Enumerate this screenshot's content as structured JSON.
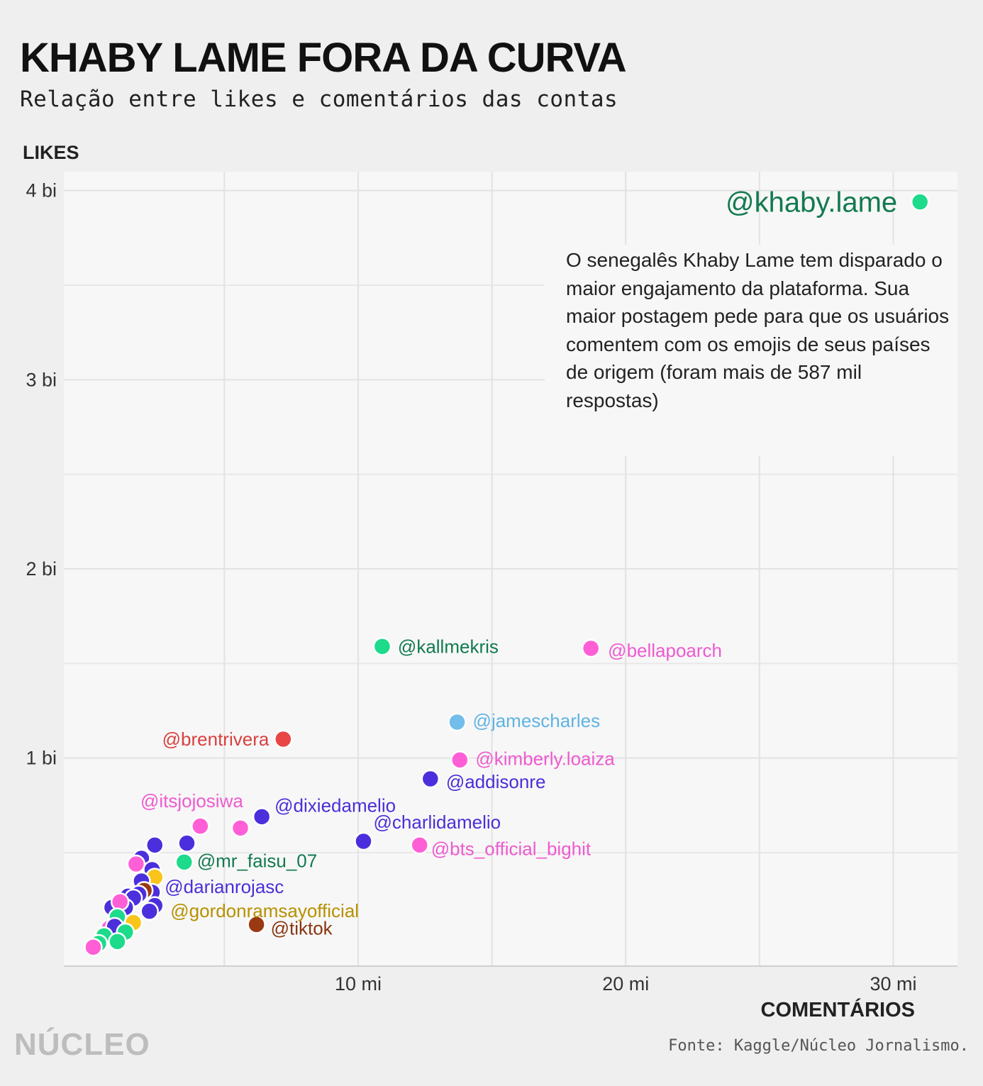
{
  "title": "KHABY LAME FORA DA CURVA",
  "subtitle": "Relação entre likes e comentários das contas",
  "footer": {
    "logo": "NÚCLEO",
    "source": "Fonte: Kaggle/Núcleo Jornalismo."
  },
  "annotation": "O senegalês Khaby Lame tem disparado o maior engajamento da plataforma. Sua maior postagem pede para que os usuários comentem com os emojis de seus países de origem (foram mais de 587 mil respostas)",
  "chart_data": {
    "type": "scatter",
    "title": "KHABY LAME FORA DA CURVA",
    "subtitle": "Relação entre likes e comentários das contas",
    "xlabel": "COMENTÁRIOS",
    "ylabel": "LIKES",
    "x_unit": "mi",
    "y_unit": "bi",
    "xlim": [
      -1.0,
      32.4
    ],
    "ylim": [
      -0.1,
      4.1
    ],
    "x_ticks": [
      {
        "value": 10,
        "label": "10 mi"
      },
      {
        "value": 20,
        "label": "20 mi"
      },
      {
        "value": 30,
        "label": "30 mi"
      }
    ],
    "y_ticks": [
      {
        "value": 1,
        "label": "1 bi"
      },
      {
        "value": 2,
        "label": "2 bi"
      },
      {
        "value": 3,
        "label": "3 bi"
      },
      {
        "value": 4,
        "label": "4 bi"
      }
    ],
    "grid": true,
    "colors": {
      "green": "#1ddb8b",
      "green_text": "#127a4f",
      "pink": "#ff5fd6",
      "pink_text": "#ef5ad0",
      "blue": "#4c2fdc",
      "blue_text": "#4a2fd8",
      "lightblue": "#72bdea",
      "lightblue_text": "#5fb3e4",
      "red": "#e94646",
      "red_text": "#d9403f",
      "yellow": "#f9c51a",
      "yellow_text": "#b89000",
      "brown": "#9a3a12",
      "brown_text": "#8a3510"
    },
    "points": [
      {
        "label": "@khaby.lame",
        "x": 31.0,
        "y": 3.94,
        "color": "green"
      },
      {
        "label": "@kallmekris",
        "x": 10.9,
        "y": 1.59,
        "color": "green"
      },
      {
        "label": "@bellapoarch",
        "x": 18.7,
        "y": 1.58,
        "color": "pink"
      },
      {
        "label": "@jamescharles",
        "x": 13.7,
        "y": 1.19,
        "color": "lightblue"
      },
      {
        "label": "@brentrivera",
        "x": 7.2,
        "y": 1.1,
        "color": "red"
      },
      {
        "label": "@kimberly.loaiza",
        "x": 13.8,
        "y": 0.99,
        "color": "pink"
      },
      {
        "label": "@addisonre",
        "x": 12.7,
        "y": 0.89,
        "color": "blue"
      },
      {
        "label": "@dixiedamelio",
        "x": 6.4,
        "y": 0.69,
        "color": "blue"
      },
      {
        "label": "@itsjojosiwa",
        "x": 4.1,
        "y": 0.64,
        "color": "pink"
      },
      {
        "label": "",
        "x": 5.6,
        "y": 0.63,
        "color": "pink"
      },
      {
        "label": "@charlidamelio",
        "x": 10.2,
        "y": 0.56,
        "color": "blue"
      },
      {
        "label": "@bts_official_bighit",
        "x": 12.3,
        "y": 0.54,
        "color": "pink"
      },
      {
        "label": "",
        "x": 2.4,
        "y": 0.54,
        "color": "blue"
      },
      {
        "label": "",
        "x": 3.6,
        "y": 0.55,
        "color": "blue"
      },
      {
        "label": "@mr_faisu_07",
        "x": 3.5,
        "y": 0.45,
        "color": "green"
      },
      {
        "label": "",
        "x": 1.9,
        "y": 0.47,
        "color": "blue"
      },
      {
        "label": "",
        "x": 1.7,
        "y": 0.44,
        "color": "pink"
      },
      {
        "label": "",
        "x": 2.3,
        "y": 0.41,
        "color": "blue"
      },
      {
        "label": "@darianrojasc",
        "x": 2.4,
        "y": 0.37,
        "color": "yellow"
      },
      {
        "label": "",
        "x": 1.9,
        "y": 0.35,
        "color": "blue"
      },
      {
        "label": "",
        "x": 2.3,
        "y": 0.29,
        "color": "blue"
      },
      {
        "label": "",
        "x": 1.4,
        "y": 0.27,
        "color": "blue"
      },
      {
        "label": "",
        "x": 2.0,
        "y": 0.3,
        "color": "brown"
      },
      {
        "label": "",
        "x": 1.8,
        "y": 0.28,
        "color": "blue"
      },
      {
        "label": "",
        "x": 1.6,
        "y": 0.26,
        "color": "blue"
      },
      {
        "label": "@gordonramsayofficial",
        "x": 2.4,
        "y": 0.22,
        "color": "blue"
      },
      {
        "label": "",
        "x": 2.2,
        "y": 0.19,
        "color": "blue"
      },
      {
        "label": "",
        "x": 0.8,
        "y": 0.21,
        "color": "blue"
      },
      {
        "label": "",
        "x": 1.3,
        "y": 0.21,
        "color": "blue"
      },
      {
        "label": "",
        "x": 1.1,
        "y": 0.24,
        "color": "pink"
      },
      {
        "label": "",
        "x": 1.0,
        "y": 0.16,
        "color": "green"
      },
      {
        "label": "",
        "x": 1.6,
        "y": 0.13,
        "color": "yellow"
      },
      {
        "label": "@tiktok",
        "x": 6.2,
        "y": 0.12,
        "color": "brown"
      },
      {
        "label": "",
        "x": 0.7,
        "y": 0.1,
        "color": "pink"
      },
      {
        "label": "",
        "x": 0.9,
        "y": 0.11,
        "color": "blue"
      },
      {
        "label": "",
        "x": 1.3,
        "y": 0.08,
        "color": "green"
      },
      {
        "label": "",
        "x": 0.5,
        "y": 0.06,
        "color": "green"
      },
      {
        "label": "",
        "x": 1.0,
        "y": 0.03,
        "color": "green"
      },
      {
        "label": "",
        "x": 0.3,
        "y": 0.02,
        "color": "green"
      },
      {
        "label": "",
        "x": 0.1,
        "y": 0.0,
        "color": "pink"
      }
    ],
    "labels": [
      {
        "text": "@khaby.lame",
        "point": 0,
        "color": "green_text",
        "size": 40,
        "anchor": "end",
        "dx": -32,
        "dy": 0
      },
      {
        "text": "@kallmekris",
        "point": 1,
        "color": "green_text",
        "size": 26,
        "anchor": "start",
        "dx": 22,
        "dy": 0
      },
      {
        "text": "@bellapoarch",
        "point": 2,
        "color": "pink_text",
        "size": 26,
        "anchor": "start",
        "dx": 24,
        "dy": 3
      },
      {
        "text": "@jamescharles",
        "point": 3,
        "color": "lightblue_text",
        "size": 26,
        "anchor": "start",
        "dx": 22,
        "dy": -2
      },
      {
        "text": "@brentrivera",
        "point": 4,
        "color": "red_text",
        "size": 26,
        "anchor": "end",
        "dx": -20,
        "dy": 0
      },
      {
        "text": "@kimberly.loaiza",
        "point": 5,
        "color": "pink_text",
        "size": 26,
        "anchor": "start",
        "dx": 22,
        "dy": -2
      },
      {
        "text": "@addisonre",
        "point": 6,
        "color": "blue_text",
        "size": 26,
        "anchor": "start",
        "dx": 22,
        "dy": 4
      },
      {
        "text": "@dixiedamelio",
        "point": 7,
        "color": "blue_text",
        "size": 26,
        "anchor": "start",
        "dx": 18,
        "dy": -16
      },
      {
        "text": "@itsjojosiwa",
        "point": 8,
        "color": "pink_text",
        "size": 26,
        "anchor": "middle",
        "dx": -12,
        "dy": -36
      },
      {
        "text": "@charlidamelio",
        "point": 10,
        "color": "blue_text",
        "size": 26,
        "anchor": "start",
        "dx": 14,
        "dy": -27
      },
      {
        "text": "@bts_official_bighit",
        "point": 11,
        "color": "pink_text",
        "size": 26,
        "anchor": "start",
        "dx": 16,
        "dy": 5
      },
      {
        "text": "@mr_faisu_07",
        "point": 14,
        "color": "green_text",
        "size": 26,
        "anchor": "start",
        "dx": 18,
        "dy": -2
      },
      {
        "text": "@darianrojasc",
        "point": 18,
        "color": "blue_text",
        "size": 26,
        "anchor": "start",
        "dx": 14,
        "dy": 13
      },
      {
        "text": "@gordonramsayofficial",
        "point": 25,
        "color": "yellow_text",
        "size": 26,
        "anchor": "start",
        "dx": 22,
        "dy": 7
      },
      {
        "text": "@tiktok",
        "point": 32,
        "color": "brown_text",
        "size": 26,
        "anchor": "start",
        "dx": 20,
        "dy": 5
      }
    ]
  }
}
